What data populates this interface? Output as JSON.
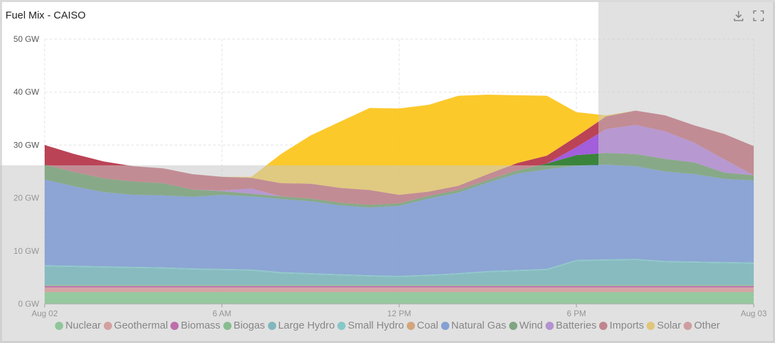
{
  "header": {
    "title": "Fuel Mix - CAISO",
    "download_icon": "download-icon",
    "fullscreen_icon": "fullscreen-icon"
  },
  "colors": {
    "Nuclear": "#4cc463",
    "Geothermal": "#e07070",
    "Biomass": "#b0008a",
    "Biogas": "#3ab04a",
    "Large Hydro": "#2aa4b0",
    "Small Hydro": "#35c8c8",
    "Coal": "#e07a20",
    "Natural Gas": "#3470e0",
    "Wind": "#2a7a2a",
    "Batteries": "#9a50d8",
    "Imports": "#b53348",
    "Solar": "#fcc419",
    "Other": "#d46a6a"
  },
  "chart_data": {
    "type": "area",
    "stacked": true,
    "title": "Fuel Mix - CAISO",
    "unit": "GW",
    "ylim": [
      0,
      50
    ],
    "yticks": [
      0,
      10,
      20,
      30,
      40,
      50
    ],
    "ytick_labels": [
      "0 GW",
      "10 GW",
      "20 GW",
      "30 GW",
      "40 GW",
      "50 GW"
    ],
    "x_hours": [
      0,
      1,
      2,
      3,
      4,
      5,
      6,
      7,
      8,
      9,
      10,
      11,
      12,
      13,
      14,
      15,
      16,
      17,
      18,
      19,
      20,
      21,
      22,
      23,
      24
    ],
    "xticks": [
      0,
      6,
      12,
      18,
      24
    ],
    "xtick_labels": [
      "Aug 02",
      "6 AM",
      "12 PM",
      "6 PM",
      "Aug 03"
    ],
    "legend": [
      "Nuclear",
      "Geothermal",
      "Biomass",
      "Biogas",
      "Large Hydro",
      "Small Hydro",
      "Coal",
      "Natural Gas",
      "Wind",
      "Batteries",
      "Imports",
      "Solar",
      "Other"
    ],
    "series": [
      {
        "name": "Nuclear",
        "values": [
          2.2,
          2.2,
          2.2,
          2.2,
          2.2,
          2.2,
          2.2,
          2.2,
          2.2,
          2.2,
          2.2,
          2.2,
          2.2,
          2.2,
          2.2,
          2.2,
          2.2,
          2.2,
          2.2,
          2.2,
          2.2,
          2.2,
          2.2,
          2.2,
          2.2
        ]
      },
      {
        "name": "Geothermal",
        "values": [
          0.9,
          0.9,
          0.9,
          0.9,
          0.9,
          0.9,
          0.9,
          0.9,
          0.9,
          0.9,
          0.9,
          0.9,
          0.9,
          0.9,
          0.9,
          0.9,
          0.9,
          0.9,
          0.9,
          0.9,
          0.9,
          0.9,
          0.9,
          0.9,
          0.9
        ]
      },
      {
        "name": "Biomass",
        "values": [
          0.3,
          0.3,
          0.3,
          0.3,
          0.3,
          0.3,
          0.3,
          0.3,
          0.3,
          0.3,
          0.3,
          0.3,
          0.3,
          0.3,
          0.3,
          0.3,
          0.3,
          0.3,
          0.3,
          0.3,
          0.3,
          0.3,
          0.3,
          0.3,
          0.3
        ]
      },
      {
        "name": "Biogas",
        "values": [
          0.2,
          0.2,
          0.2,
          0.2,
          0.2,
          0.2,
          0.2,
          0.2,
          0.2,
          0.2,
          0.2,
          0.2,
          0.2,
          0.2,
          0.2,
          0.2,
          0.2,
          0.2,
          0.2,
          0.2,
          0.2,
          0.2,
          0.2,
          0.2,
          0.2
        ]
      },
      {
        "name": "Large Hydro",
        "values": [
          3.5,
          3.4,
          3.3,
          3.2,
          3.1,
          2.9,
          2.8,
          2.7,
          2.2,
          2.0,
          1.8,
          1.6,
          1.5,
          1.7,
          2.0,
          2.4,
          2.6,
          2.8,
          4.5,
          4.6,
          4.7,
          4.3,
          4.2,
          4.1,
          4.0
        ]
      },
      {
        "name": "Small Hydro",
        "values": [
          0.2,
          0.2,
          0.2,
          0.2,
          0.2,
          0.2,
          0.2,
          0.2,
          0.2,
          0.2,
          0.2,
          0.2,
          0.2,
          0.2,
          0.2,
          0.2,
          0.2,
          0.2,
          0.2,
          0.2,
          0.2,
          0.2,
          0.2,
          0.2,
          0.2
        ]
      },
      {
        "name": "Coal",
        "values": [
          0,
          0,
          0,
          0,
          0,
          0,
          0,
          0,
          0,
          0,
          0,
          0,
          0,
          0,
          0,
          0,
          0,
          0,
          0,
          0,
          0,
          0,
          0,
          0,
          0
        ]
      },
      {
        "name": "Natural Gas",
        "values": [
          16.2,
          15.0,
          14.0,
          13.6,
          13.6,
          13.5,
          14.0,
          13.8,
          13.8,
          13.6,
          13.0,
          12.8,
          13.2,
          14.4,
          15.2,
          16.7,
          18.2,
          18.8,
          17.8,
          17.9,
          17.5,
          16.9,
          16.5,
          15.7,
          15.5
        ]
      },
      {
        "name": "Wind",
        "values": [
          2.8,
          2.7,
          2.6,
          2.5,
          2.3,
          1.4,
          0.7,
          0.5,
          0.5,
          0.5,
          0.5,
          0.5,
          0.5,
          0.5,
          0.5,
          0.5,
          0.6,
          1.1,
          2.0,
          2.2,
          2.3,
          2.4,
          2.2,
          1.2,
          1.0
        ]
      },
      {
        "name": "Batteries",
        "values": [
          0,
          0,
          0,
          0,
          0,
          0,
          0.1,
          1.0,
          0,
          0,
          0,
          0,
          0,
          0,
          0,
          0,
          0,
          0,
          1.5,
          4.5,
          5.5,
          5.2,
          3.7,
          2.5,
          0
        ]
      },
      {
        "name": "Imports",
        "values": [
          3.7,
          3.4,
          3.2,
          2.9,
          2.8,
          2.9,
          2.6,
          2.0,
          2.5,
          2.8,
          2.8,
          2.8,
          1.6,
          0.8,
          0.8,
          1.1,
          1.4,
          1.5,
          2.0,
          2.4,
          2.7,
          3.0,
          3.3,
          4.8,
          5.5
        ]
      },
      {
        "name": "Solar",
        "values": [
          0,
          0,
          0,
          0,
          0,
          0,
          0,
          0.2,
          5.5,
          9.1,
          12.5,
          15.5,
          16.3,
          16.4,
          17.0,
          15.0,
          12.8,
          11.3,
          4.6,
          0.2,
          0,
          0,
          0,
          0,
          0
        ]
      },
      {
        "name": "Other",
        "values": [
          0,
          0,
          0,
          0,
          0,
          0,
          0,
          0,
          0,
          0,
          0,
          0,
          0,
          0,
          0,
          0,
          0,
          0,
          0,
          0,
          0,
          0,
          0,
          0,
          0
        ]
      }
    ]
  }
}
